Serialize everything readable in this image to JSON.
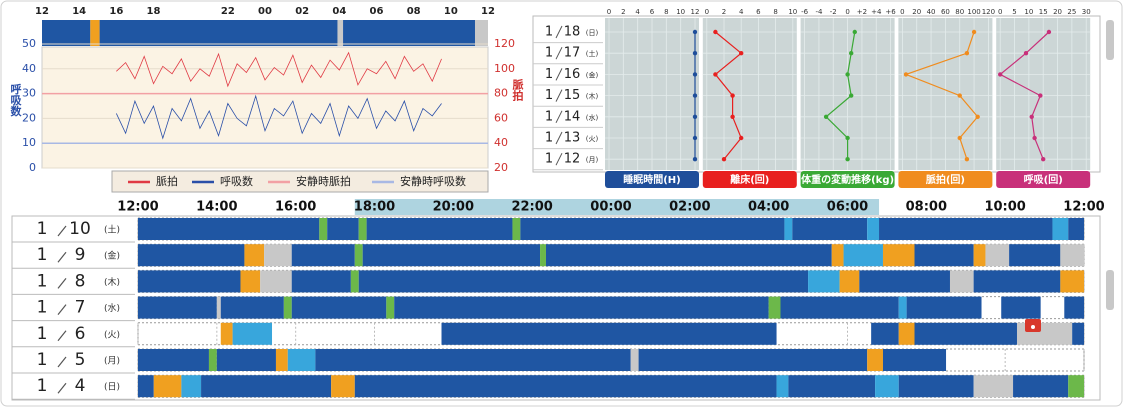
{
  "vitals_chart": {
    "xlim": [
      0,
      24
    ],
    "xticks": [
      {
        "value": 0,
        "label": "12"
      },
      {
        "value": 2,
        "label": "14"
      },
      {
        "value": 4,
        "label": "16"
      },
      {
        "value": 6,
        "label": "18"
      },
      {
        "value": 10,
        "label": "22"
      },
      {
        "value": 12,
        "label": "00"
      },
      {
        "value": 14,
        "label": "02"
      },
      {
        "value": 16,
        "label": "04"
      },
      {
        "value": 18,
        "label": "06"
      },
      {
        "value": 20,
        "label": "08"
      },
      {
        "value": 22,
        "label": "10"
      },
      {
        "value": 24,
        "label": "12"
      }
    ],
    "y_label": "呼吸数",
    "y2_label": "脈拍",
    "ylim": [
      0,
      50
    ],
    "yticks": [
      0,
      10,
      20,
      30,
      40,
      50
    ],
    "y2lim": [
      20,
      120
    ],
    "y2ticks": [
      20,
      40,
      60,
      80,
      100,
      120
    ],
    "x": [
      4.0,
      4.5,
      5.0,
      5.5,
      6.0,
      6.5,
      7.0,
      7.5,
      8.0,
      8.5,
      9.0,
      9.5,
      10.0,
      10.5,
      11.0,
      11.5,
      12.0,
      12.5,
      13.0,
      13.5,
      14.0,
      14.5,
      15.0,
      15.5,
      16.0,
      16.5,
      17.0,
      17.5,
      18.0,
      18.5,
      19.0,
      19.5,
      20.0,
      20.5,
      21.0,
      21.5
    ],
    "series": [
      {
        "name": "脈拍",
        "color": "#e03a44",
        "axis": "y2",
        "values": [
          98,
          105,
          92,
          110,
          88,
          102,
          96,
          108,
          90,
          100,
          94,
          112,
          86,
          104,
          97,
          109,
          91,
          101,
          95,
          111,
          89,
          103,
          93,
          107,
          99,
          113,
          87,
          100,
          96,
          106,
          92,
          110,
          98,
          104,
          90,
          108
        ]
      },
      {
        "name": "呼吸数",
        "color": "#2a4fa8",
        "values": [
          22,
          14,
          27,
          18,
          25,
          12,
          24,
          19,
          28,
          16,
          23,
          13,
          26,
          20,
          17,
          29,
          15,
          24,
          21,
          27,
          14,
          22,
          18,
          26,
          13,
          25,
          20,
          28,
          16,
          23,
          19,
          27,
          15,
          24,
          21,
          26
        ]
      },
      {
        "name": "安静時脈拍",
        "color": "#f2a0a4",
        "axis": "y2",
        "value": 80
      },
      {
        "name": "安静時呼吸数",
        "color": "#a8b8e4",
        "value": 10
      }
    ],
    "sleep_strip": [
      [
        0,
        2.6,
        "sleep"
      ],
      [
        2.6,
        3.1,
        "out"
      ],
      [
        3.1,
        15.9,
        "sleep"
      ],
      [
        15.9,
        16.2,
        "nodata"
      ],
      [
        16.2,
        23.3,
        "sleep"
      ],
      [
        23.3,
        24,
        "nodata"
      ]
    ]
  },
  "trend": {
    "dates": [
      [
        "1",
        "18",
        "(日)"
      ],
      [
        "1",
        "17",
        "(土)"
      ],
      [
        "1",
        "16",
        "(金)"
      ],
      [
        "1",
        "15",
        "(木)"
      ],
      [
        "1",
        "14",
        "(水)"
      ],
      [
        "1",
        "13",
        "(火)"
      ],
      [
        "1",
        "12",
        "(月)"
      ]
    ],
    "panels": [
      {
        "title": "睡眠時間(H)",
        "color": "#1f4e9a",
        "xlim": [
          0,
          12
        ],
        "xticks": [
          0,
          2,
          4,
          6,
          8,
          10,
          12
        ],
        "values": [
          12,
          12,
          12,
          12,
          12,
          12,
          12
        ]
      },
      {
        "title": "離床(回)",
        "color": "#e8201f",
        "xlim": [
          0,
          10
        ],
        "xticks": [
          0,
          2,
          4,
          6,
          8,
          10
        ],
        "values": [
          1,
          4,
          1,
          3,
          3,
          4,
          2
        ]
      },
      {
        "title": "体重の変動推移(kg)",
        "color": "#3aa935",
        "xlim": [
          -6,
          6
        ],
        "xticks": [
          -6,
          -4,
          -2,
          0,
          {
            "value": 2,
            "label": "+2"
          },
          {
            "value": 4,
            "label": "+4"
          },
          {
            "value": 6,
            "label": "+6"
          }
        ],
        "values": [
          1,
          0.5,
          0,
          0.5,
          -3,
          0,
          0
        ]
      },
      {
        "title": "脈拍(回)",
        "color": "#f08c1e",
        "xlim": [
          0,
          120
        ],
        "xticks": [
          0,
          20,
          40,
          60,
          80,
          100,
          120
        ],
        "values": [
          100,
          90,
          5,
          80,
          105,
          80,
          90
        ]
      },
      {
        "title": "呼吸(回)",
        "color": "#c8307a",
        "xlim": [
          0,
          30
        ],
        "xticks": [
          0,
          5,
          10,
          15,
          20,
          25,
          30
        ],
        "values": [
          17,
          9,
          0,
          14,
          11,
          12,
          15
        ]
      }
    ]
  },
  "timeline": {
    "xlim": [
      0,
      24
    ],
    "xticks": [
      {
        "value": 0,
        "label": "12:00"
      },
      {
        "value": 2,
        "label": "14:00"
      },
      {
        "value": 4,
        "label": "16:00"
      },
      {
        "value": 6,
        "label": "18:00"
      },
      {
        "value": 8,
        "label": "20:00"
      },
      {
        "value": 10,
        "label": "22:00"
      },
      {
        "value": 12,
        "label": "00:00"
      },
      {
        "value": 14,
        "label": "02:00"
      },
      {
        "value": 16,
        "label": "04:00"
      },
      {
        "value": 18,
        "label": "06:00"
      },
      {
        "value": 20,
        "label": "08:00"
      },
      {
        "value": 22,
        "label": "10:00"
      },
      {
        "value": 24,
        "label": "12:00"
      }
    ],
    "highlight": [
      5.5,
      18.8
    ],
    "state_colors": {
      "sleep": "#1f56a3",
      "light": "#38a6dc",
      "awake": "#6cb84a",
      "out": "#f0a020",
      "nodata": "#c8c8c8",
      "empty": "#ffffff"
    },
    "rows": [
      {
        "date": [
          "1",
          "10",
          "(土)"
        ],
        "segments": [
          [
            0,
            4.6,
            "sleep"
          ],
          [
            4.6,
            4.8,
            "awake"
          ],
          [
            4.8,
            5.6,
            "sleep"
          ],
          [
            5.6,
            5.8,
            "awake"
          ],
          [
            5.8,
            9.5,
            "sleep"
          ],
          [
            9.5,
            9.7,
            "awake"
          ],
          [
            9.7,
            16.4,
            "sleep"
          ],
          [
            16.4,
            16.6,
            "light"
          ],
          [
            16.6,
            18.5,
            "sleep"
          ],
          [
            18.5,
            18.8,
            "light"
          ],
          [
            18.8,
            23.2,
            "sleep"
          ],
          [
            23.2,
            23.6,
            "light"
          ],
          [
            23.6,
            24,
            "sleep"
          ]
        ]
      },
      {
        "date": [
          "1",
          "9",
          "(金)"
        ],
        "segments": [
          [
            0,
            2.7,
            "sleep"
          ],
          [
            2.7,
            3.2,
            "out"
          ],
          [
            3.2,
            3.9,
            "nodata"
          ],
          [
            3.9,
            5.5,
            "sleep"
          ],
          [
            5.5,
            5.7,
            "awake"
          ],
          [
            5.7,
            10.2,
            "sleep"
          ],
          [
            10.2,
            10.35,
            "awake"
          ],
          [
            10.35,
            17.6,
            "sleep"
          ],
          [
            17.6,
            17.9,
            "out"
          ],
          [
            17.9,
            18.9,
            "light"
          ],
          [
            18.9,
            19.7,
            "out"
          ],
          [
            19.7,
            21.2,
            "sleep"
          ],
          [
            21.2,
            21.5,
            "out"
          ],
          [
            21.5,
            22.1,
            "nodata"
          ],
          [
            22.1,
            23.4,
            "sleep"
          ],
          [
            23.4,
            24,
            "nodata"
          ]
        ]
      },
      {
        "date": [
          "1",
          "8",
          "(木)"
        ],
        "segments": [
          [
            0,
            2.6,
            "sleep"
          ],
          [
            2.6,
            3.1,
            "out"
          ],
          [
            3.1,
            3.9,
            "nodata"
          ],
          [
            3.9,
            5.4,
            "sleep"
          ],
          [
            5.4,
            5.6,
            "awake"
          ],
          [
            5.6,
            17.0,
            "sleep"
          ],
          [
            17.0,
            17.8,
            "light"
          ],
          [
            17.8,
            18.3,
            "out"
          ],
          [
            18.3,
            20.6,
            "sleep"
          ],
          [
            20.6,
            21.2,
            "nodata"
          ],
          [
            21.2,
            23.4,
            "sleep"
          ],
          [
            23.4,
            24,
            "out"
          ]
        ]
      },
      {
        "date": [
          "1",
          "7",
          "(水)"
        ],
        "segments": [
          [
            0,
            2.0,
            "sleep"
          ],
          [
            2.0,
            2.1,
            "nodata"
          ],
          [
            2.1,
            3.7,
            "sleep"
          ],
          [
            3.7,
            3.9,
            "awake"
          ],
          [
            3.9,
            6.3,
            "sleep"
          ],
          [
            6.3,
            6.5,
            "awake"
          ],
          [
            6.5,
            16.0,
            "sleep"
          ],
          [
            16.0,
            16.3,
            "awake"
          ],
          [
            16.3,
            19.3,
            "sleep"
          ],
          [
            19.3,
            19.5,
            "light"
          ],
          [
            19.5,
            21.4,
            "sleep"
          ],
          [
            21.4,
            21.9,
            "empty"
          ],
          [
            21.9,
            22.9,
            "sleep"
          ],
          [
            22.9,
            23.5,
            "empty"
          ],
          [
            23.5,
            24,
            "sleep"
          ]
        ]
      },
      {
        "date": [
          "1",
          "6",
          "(火)"
        ],
        "segments": [
          [
            0,
            2.1,
            "empty"
          ],
          [
            2.1,
            2.4,
            "out"
          ],
          [
            2.4,
            3.4,
            "light"
          ],
          [
            3.4,
            7.7,
            "empty"
          ],
          [
            7.7,
            16.2,
            "sleep"
          ],
          [
            16.2,
            18.6,
            "empty"
          ],
          [
            18.6,
            19.3,
            "sleep"
          ],
          [
            19.3,
            19.7,
            "out"
          ],
          [
            19.7,
            22.3,
            "sleep"
          ],
          [
            22.3,
            23.7,
            "nodata"
          ],
          [
            23.7,
            24,
            "sleep"
          ]
        ]
      },
      {
        "date": [
          "1",
          "5",
          "(月)"
        ],
        "segments": [
          [
            0,
            1.8,
            "sleep"
          ],
          [
            1.8,
            2.0,
            "awake"
          ],
          [
            2.0,
            3.5,
            "sleep"
          ],
          [
            3.5,
            3.8,
            "out"
          ],
          [
            3.8,
            4.5,
            "light"
          ],
          [
            4.5,
            12.5,
            "sleep"
          ],
          [
            12.5,
            12.7,
            "nodata"
          ],
          [
            12.7,
            18.5,
            "sleep"
          ],
          [
            18.5,
            18.9,
            "out"
          ],
          [
            18.9,
            20.5,
            "sleep"
          ],
          [
            20.5,
            24,
            "empty"
          ]
        ]
      },
      {
        "date": [
          "1",
          "4",
          "(日)"
        ],
        "segments": [
          [
            0,
            0.4,
            "sleep"
          ],
          [
            0.4,
            1.1,
            "out"
          ],
          [
            1.1,
            1.6,
            "light"
          ],
          [
            1.6,
            4.9,
            "sleep"
          ],
          [
            4.9,
            5.5,
            "out"
          ],
          [
            5.5,
            16.2,
            "sleep"
          ],
          [
            16.2,
            16.5,
            "light"
          ],
          [
            16.5,
            18.7,
            "sleep"
          ],
          [
            18.7,
            19.3,
            "light"
          ],
          [
            19.3,
            21.2,
            "sleep"
          ],
          [
            21.2,
            22.2,
            "nodata"
          ],
          [
            22.2,
            23.6,
            "sleep"
          ],
          [
            23.6,
            24,
            "awake"
          ]
        ]
      }
    ]
  }
}
